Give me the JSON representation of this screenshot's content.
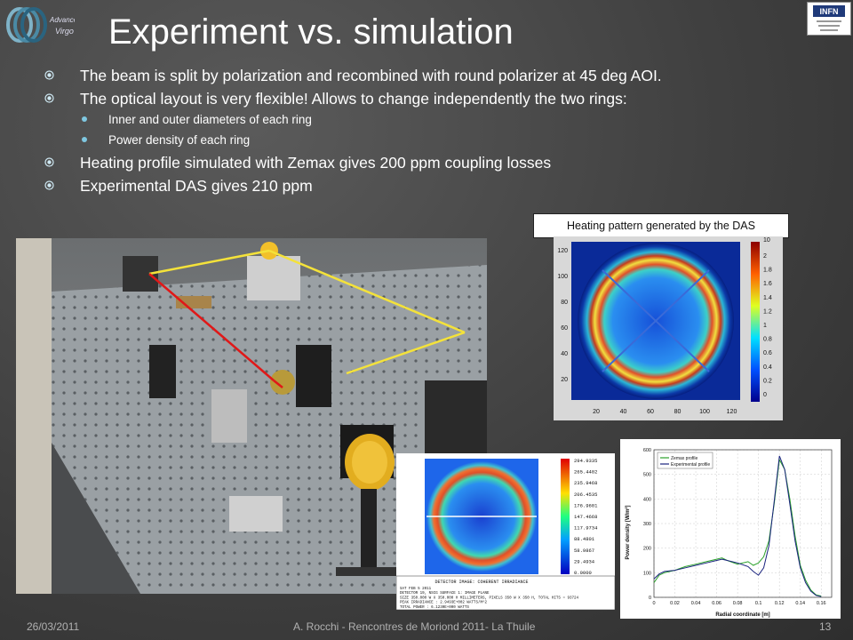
{
  "header": {
    "title": "Experiment vs. simulation",
    "virgo_logo_text": [
      "Advanced",
      "Virgo"
    ],
    "infn_logo_text": "INFN"
  },
  "bullets": [
    {
      "level": 1,
      "text": "The beam is split by polarization and recombined with round polarizer at 45 deg AOI."
    },
    {
      "level": 1,
      "text": "The optical layout is very flexible! Allows to change independently the two rings:"
    },
    {
      "level": 2,
      "text": "Inner and outer diameters of each ring"
    },
    {
      "level": 2,
      "text": "Power density of each ring"
    },
    {
      "level": 1,
      "text": "Heating profile simulated with Zemax gives 200 ppm coupling losses"
    },
    {
      "level": 1,
      "text": "Experimental DAS gives 210 ppm"
    }
  ],
  "das_figure": {
    "caption": "Heating pattern generated by the DAS",
    "y_ticks": [
      "120",
      "100",
      "80",
      "60",
      "40",
      "20"
    ],
    "x_ticks": [
      "20",
      "40",
      "60",
      "80",
      "100",
      "120"
    ],
    "colorbar_ticks": [
      "2",
      "1.8",
      "1.6",
      "1.4",
      "1.2",
      "1",
      "0.8",
      "0.6",
      "0.4",
      "0.2",
      "0"
    ],
    "colorbar_top_partial": "10"
  },
  "zemax_figure": {
    "colorbar_values": [
      "294.9335",
      "265.4402",
      "235.9468",
      "206.4535",
      "176.9601",
      "147.4668",
      "117.9734",
      "88.4801",
      "58.9867",
      "29.4934",
      "0.0000"
    ],
    "footer_title": "DETECTOR IMAGE: COHERENT IRRADIANCE",
    "footer_lines": [
      "SAT FEB 5 2011",
      "DETECTOR 19, NSCG SURFACE 1: IMAGE PLANE",
      "SIZE 350.000 W X 350.000 H MILLIMETERS, PIXELS 350 W X 350 H, TOTAL HITS = 93724",
      "PEAK IRRADIANCE : 2.9493E+002 WATTS/M^2",
      "TOTAL POWER     : 6.1230E+000 WATTS"
    ]
  },
  "profile_chart": {
    "chart_data": {
      "type": "line",
      "xlabel": "Radial coordinate [m]",
      "ylabel": "Power density [W/m²]",
      "xlim": [
        0,
        0.17
      ],
      "ylim": [
        0,
        600
      ],
      "x_ticks": [
        "0",
        "0.02",
        "0.04",
        "0.06",
        "0.08",
        "0.1",
        "0.12",
        "0.14",
        "0.16"
      ],
      "y_ticks": [
        "0",
        "100",
        "200",
        "300",
        "400",
        "500",
        "600"
      ],
      "series": [
        {
          "name": "Zemax profile",
          "color": "#2aa02a",
          "x": [
            0,
            0.005,
            0.01,
            0.02,
            0.03,
            0.04,
            0.05,
            0.06,
            0.065,
            0.07,
            0.08,
            0.09,
            0.095,
            0.1,
            0.105,
            0.11,
            0.115,
            0.12,
            0.125,
            0.13,
            0.135,
            0.14,
            0.145,
            0.15,
            0.155,
            0.16
          ],
          "y": [
            60,
            90,
            100,
            110,
            125,
            135,
            145,
            155,
            160,
            150,
            135,
            145,
            130,
            140,
            165,
            230,
            380,
            560,
            520,
            400,
            250,
            130,
            70,
            30,
            10,
            5
          ]
        },
        {
          "name": "Experimental profile",
          "color": "#1a237e",
          "x": [
            0,
            0.005,
            0.01,
            0.02,
            0.03,
            0.04,
            0.05,
            0.06,
            0.065,
            0.07,
            0.08,
            0.09,
            0.095,
            0.1,
            0.105,
            0.11,
            0.115,
            0.12,
            0.125,
            0.13,
            0.135,
            0.14,
            0.145,
            0.15,
            0.155,
            0.16
          ],
          "y": [
            75,
            95,
            105,
            110,
            120,
            130,
            140,
            150,
            155,
            150,
            140,
            125,
            105,
            90,
            120,
            210,
            390,
            575,
            520,
            380,
            230,
            120,
            60,
            25,
            8,
            3
          ]
        }
      ]
    }
  },
  "footer": {
    "date": "26/03/2011",
    "center": "A. Rocchi - Rencontres de Moriond 2011- La Thuile",
    "page": "13"
  }
}
